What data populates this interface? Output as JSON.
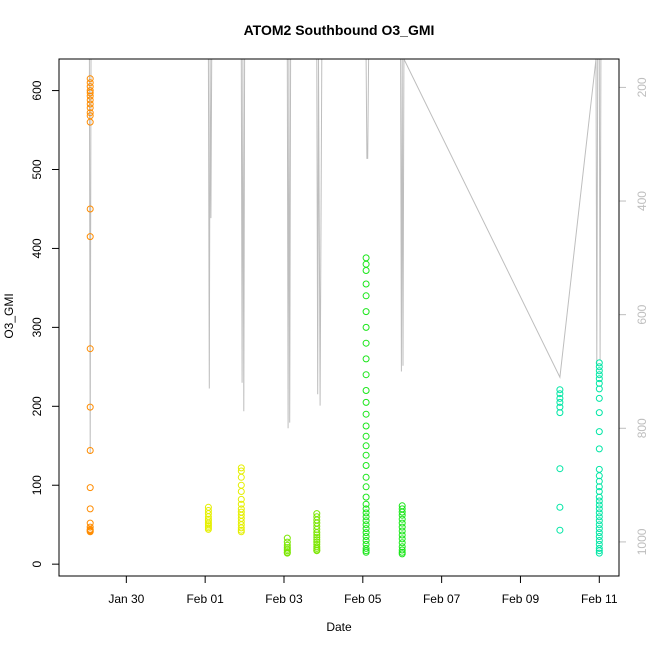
{
  "chart_data": {
    "type": "scatter",
    "title": "ATOM2 Southbound O3_GMI",
    "xlabel": "Date",
    "ylabel": "O3_GMI",
    "xlim": [
      "2017-01-28T07:00",
      "2017-02-11T12:00"
    ],
    "ylim": [
      -15,
      640
    ],
    "x_ticks": [
      {
        "date": "2017-01-30",
        "label": "Jan 30"
      },
      {
        "date": "2017-02-01",
        "label": "Feb 01"
      },
      {
        "date": "2017-02-03",
        "label": "Feb 03"
      },
      {
        "date": "2017-02-05",
        "label": "Feb 05"
      },
      {
        "date": "2017-02-07",
        "label": "Feb 07"
      },
      {
        "date": "2017-02-09",
        "label": "Feb 09"
      },
      {
        "date": "2017-02-11",
        "label": "Feb 11"
      }
    ],
    "y_ticks": [
      0,
      100,
      200,
      300,
      400,
      500,
      600
    ],
    "y2_axis": {
      "quantity": "pressure",
      "lim": [
        150,
        1060
      ],
      "reversed": true,
      "ticks": [
        200,
        400,
        600,
        800,
        1000
      ],
      "color": "#bebebe"
    },
    "grid": false,
    "legend": "none",
    "point_style": "open-circle",
    "series": [
      {
        "color": "#ff8c00",
        "points": [
          [
            "2017-01-29T02:00",
            615
          ],
          [
            "2017-01-29T02:00",
            610
          ],
          [
            "2017-01-29T02:00",
            605
          ],
          [
            "2017-01-29T02:00",
            600
          ],
          [
            "2017-01-29T02:00",
            597
          ],
          [
            "2017-01-29T02:00",
            593
          ],
          [
            "2017-01-29T02:00",
            588
          ],
          [
            "2017-01-29T02:00",
            583
          ],
          [
            "2017-01-29T02:00",
            578
          ],
          [
            "2017-01-29T02:00",
            572
          ],
          [
            "2017-01-29T02:00",
            568
          ],
          [
            "2017-01-29T02:00",
            560
          ],
          [
            "2017-01-29T02:00",
            450
          ],
          [
            "2017-01-29T02:00",
            415
          ],
          [
            "2017-01-29T02:00",
            273
          ],
          [
            "2017-01-29T02:00",
            199
          ],
          [
            "2017-01-29T02:00",
            144
          ],
          [
            "2017-01-29T02:00",
            97
          ],
          [
            "2017-01-29T02:00",
            70
          ],
          [
            "2017-01-29T02:00",
            52
          ],
          [
            "2017-01-29T02:00",
            47
          ],
          [
            "2017-01-29T02:00",
            44
          ],
          [
            "2017-01-29T02:00",
            43
          ],
          [
            "2017-01-29T02:00",
            42
          ],
          [
            "2017-01-29T02:00",
            41
          ]
        ]
      },
      {
        "color": "#e5ef00",
        "points": [
          [
            "2017-02-01T02:00",
            72
          ],
          [
            "2017-02-01T02:00",
            68
          ],
          [
            "2017-02-01T02:00",
            64
          ],
          [
            "2017-02-01T02:00",
            60
          ],
          [
            "2017-02-01T02:00",
            57
          ],
          [
            "2017-02-01T02:00",
            55
          ],
          [
            "2017-02-01T02:00",
            52
          ],
          [
            "2017-02-01T02:00",
            50
          ],
          [
            "2017-02-01T02:00",
            48
          ],
          [
            "2017-02-01T02:00",
            46
          ],
          [
            "2017-02-01T02:00",
            44
          ],
          [
            "2017-02-01T22:00",
            122
          ],
          [
            "2017-02-01T22:00",
            118
          ],
          [
            "2017-02-01T22:00",
            110
          ],
          [
            "2017-02-01T22:00",
            100
          ],
          [
            "2017-02-01T22:00",
            92
          ],
          [
            "2017-02-01T22:00",
            82
          ],
          [
            "2017-02-01T22:00",
            76
          ],
          [
            "2017-02-01T22:00",
            70
          ],
          [
            "2017-02-01T22:00",
            66
          ],
          [
            "2017-02-01T22:00",
            62
          ],
          [
            "2017-02-01T22:00",
            58
          ],
          [
            "2017-02-01T22:00",
            54
          ],
          [
            "2017-02-01T22:00",
            50
          ],
          [
            "2017-02-01T22:00",
            46
          ],
          [
            "2017-02-01T22:00",
            43
          ],
          [
            "2017-02-01T22:00",
            41
          ]
        ]
      },
      {
        "color": "#7be600",
        "points": [
          [
            "2017-02-03T02:00",
            33
          ],
          [
            "2017-02-03T02:00",
            28
          ],
          [
            "2017-02-03T02:00",
            24
          ],
          [
            "2017-02-03T02:00",
            21
          ],
          [
            "2017-02-03T02:00",
            19
          ],
          [
            "2017-02-03T02:00",
            17
          ],
          [
            "2017-02-03T02:00",
            15
          ],
          [
            "2017-02-03T02:00",
            14
          ],
          [
            "2017-02-03T20:00",
            64
          ],
          [
            "2017-02-03T20:00",
            60
          ],
          [
            "2017-02-03T20:00",
            56
          ],
          [
            "2017-02-03T20:00",
            52
          ],
          [
            "2017-02-03T20:00",
            48
          ],
          [
            "2017-02-03T20:00",
            44
          ],
          [
            "2017-02-03T20:00",
            40
          ],
          [
            "2017-02-03T20:00",
            37
          ],
          [
            "2017-02-03T20:00",
            34
          ],
          [
            "2017-02-03T20:00",
            31
          ],
          [
            "2017-02-03T20:00",
            28
          ],
          [
            "2017-02-03T20:00",
            25
          ],
          [
            "2017-02-03T20:00",
            22
          ],
          [
            "2017-02-03T20:00",
            20
          ],
          [
            "2017-02-03T20:00",
            18
          ],
          [
            "2017-02-03T20:00",
            17
          ]
        ]
      },
      {
        "color": "#19e619",
        "points": [
          [
            "2017-02-05T02:00",
            388
          ],
          [
            "2017-02-05T02:00",
            380
          ],
          [
            "2017-02-05T02:00",
            372
          ],
          [
            "2017-02-05T02:00",
            355
          ],
          [
            "2017-02-05T02:00",
            340
          ],
          [
            "2017-02-05T02:00",
            320
          ],
          [
            "2017-02-05T02:00",
            300
          ],
          [
            "2017-02-05T02:00",
            280
          ],
          [
            "2017-02-05T02:00",
            260
          ],
          [
            "2017-02-05T02:00",
            240
          ],
          [
            "2017-02-05T02:00",
            220
          ],
          [
            "2017-02-05T02:00",
            205
          ],
          [
            "2017-02-05T02:00",
            190
          ],
          [
            "2017-02-05T02:00",
            175
          ],
          [
            "2017-02-05T02:00",
            162
          ],
          [
            "2017-02-05T02:00",
            150
          ],
          [
            "2017-02-05T02:00",
            138
          ],
          [
            "2017-02-05T02:00",
            125
          ],
          [
            "2017-02-05T02:00",
            110
          ],
          [
            "2017-02-05T02:00",
            98
          ],
          [
            "2017-02-05T02:00",
            85
          ],
          [
            "2017-02-05T02:00",
            76
          ],
          [
            "2017-02-05T02:00",
            70
          ],
          [
            "2017-02-05T02:00",
            65
          ],
          [
            "2017-02-05T02:00",
            60
          ],
          [
            "2017-02-05T02:00",
            55
          ],
          [
            "2017-02-05T02:00",
            50
          ],
          [
            "2017-02-05T02:00",
            45
          ],
          [
            "2017-02-05T02:00",
            40
          ],
          [
            "2017-02-05T02:00",
            35
          ],
          [
            "2017-02-05T02:00",
            30
          ],
          [
            "2017-02-05T02:00",
            25
          ],
          [
            "2017-02-05T02:00",
            20
          ],
          [
            "2017-02-05T02:00",
            17
          ],
          [
            "2017-02-05T02:00",
            15
          ],
          [
            "2017-02-06T00:00",
            74
          ],
          [
            "2017-02-06T00:00",
            70
          ],
          [
            "2017-02-06T00:00",
            66
          ],
          [
            "2017-02-06T00:00",
            62
          ],
          [
            "2017-02-06T00:00",
            57
          ],
          [
            "2017-02-06T00:00",
            52
          ],
          [
            "2017-02-06T00:00",
            47
          ],
          [
            "2017-02-06T00:00",
            42
          ],
          [
            "2017-02-06T00:00",
            37
          ],
          [
            "2017-02-06T00:00",
            32
          ],
          [
            "2017-02-06T00:00",
            27
          ],
          [
            "2017-02-06T00:00",
            22
          ],
          [
            "2017-02-06T00:00",
            18
          ],
          [
            "2017-02-06T00:00",
            15
          ],
          [
            "2017-02-06T00:00",
            13
          ]
        ]
      },
      {
        "color": "#00e6a5",
        "points": [
          [
            "2017-02-10T00:00",
            221
          ],
          [
            "2017-02-10T00:00",
            216
          ],
          [
            "2017-02-10T00:00",
            210
          ],
          [
            "2017-02-10T00:00",
            205
          ],
          [
            "2017-02-10T00:00",
            199
          ],
          [
            "2017-02-10T00:00",
            192
          ],
          [
            "2017-02-10T00:00",
            121
          ],
          [
            "2017-02-10T00:00",
            72
          ],
          [
            "2017-02-10T00:00",
            43
          ],
          [
            "2017-02-11T00:00",
            255
          ],
          [
            "2017-02-11T00:00",
            250
          ],
          [
            "2017-02-11T00:00",
            245
          ],
          [
            "2017-02-11T00:00",
            240
          ],
          [
            "2017-02-11T00:00",
            235
          ],
          [
            "2017-02-11T00:00",
            229
          ],
          [
            "2017-02-11T00:00",
            222
          ],
          [
            "2017-02-11T00:00",
            210
          ],
          [
            "2017-02-11T00:00",
            192
          ],
          [
            "2017-02-11T00:00",
            168
          ],
          [
            "2017-02-11T00:00",
            146
          ],
          [
            "2017-02-11T00:00",
            120
          ],
          [
            "2017-02-11T00:00",
            112
          ],
          [
            "2017-02-11T00:00",
            105
          ],
          [
            "2017-02-11T00:00",
            98
          ],
          [
            "2017-02-11T00:00",
            92
          ],
          [
            "2017-02-11T00:00",
            85
          ],
          [
            "2017-02-11T00:00",
            80
          ],
          [
            "2017-02-11T00:00",
            75
          ],
          [
            "2017-02-11T00:00",
            70
          ],
          [
            "2017-02-11T00:00",
            65
          ],
          [
            "2017-02-11T00:00",
            60
          ],
          [
            "2017-02-11T00:00",
            55
          ],
          [
            "2017-02-11T00:00",
            50
          ],
          [
            "2017-02-11T00:00",
            45
          ],
          [
            "2017-02-11T00:00",
            40
          ],
          [
            "2017-02-11T00:00",
            35
          ],
          [
            "2017-02-11T00:00",
            30
          ],
          [
            "2017-02-11T00:00",
            25
          ],
          [
            "2017-02-11T00:00",
            20
          ],
          [
            "2017-02-11T00:00",
            17
          ],
          [
            "2017-02-11T00:00",
            14
          ]
        ]
      }
    ],
    "pressure_trace": {
      "color": "#bebebe",
      "points": [
        [
          "2017-01-29T01:30",
          150
        ],
        [
          "2017-01-29T02:00",
          845
        ],
        [
          "2017-01-29T02:30",
          150
        ],
        [
          "2017-02-01T02:00",
          150
        ],
        [
          "2017-02-01T02:30",
          730
        ],
        [
          "2017-02-01T03:00",
          150
        ],
        [
          "2017-02-01T03:30",
          430
        ],
        [
          "2017-02-01T04:00",
          150
        ],
        [
          "2017-02-01T22:00",
          150
        ],
        [
          "2017-02-01T22:30",
          720
        ],
        [
          "2017-02-01T23:00",
          150
        ],
        [
          "2017-02-01T23:30",
          770
        ],
        [
          "2017-02-02T00:00",
          150
        ],
        [
          "2017-02-03T02:00",
          150
        ],
        [
          "2017-02-03T02:30",
          800
        ],
        [
          "2017-02-03T03:00",
          150
        ],
        [
          "2017-02-03T03:30",
          790
        ],
        [
          "2017-02-03T04:00",
          150
        ],
        [
          "2017-02-03T20:00",
          150
        ],
        [
          "2017-02-03T20:30",
          740
        ],
        [
          "2017-02-03T21:00",
          150
        ],
        [
          "2017-02-03T22:00",
          760
        ],
        [
          "2017-02-03T23:00",
          150
        ],
        [
          "2017-02-05T02:00",
          150
        ],
        [
          "2017-02-05T02:30",
          325
        ],
        [
          "2017-02-05T03:00",
          325
        ],
        [
          "2017-02-05T03:30",
          150
        ],
        [
          "2017-02-05T23:00",
          150
        ],
        [
          "2017-02-05T23:30",
          700
        ],
        [
          "2017-02-06T00:00",
          150
        ],
        [
          "2017-02-06T00:30",
          690
        ],
        [
          "2017-02-06T01:00",
          150
        ],
        [
          "2017-02-10T00:00",
          710
        ],
        [
          "2017-02-10T22:00",
          150
        ],
        [
          "2017-02-10T22:30",
          690
        ],
        [
          "2017-02-10T23:00",
          150
        ],
        [
          "2017-02-11T00:00",
          150
        ],
        [
          "2017-02-11T00:30",
          680
        ],
        [
          "2017-02-11T01:00",
          150
        ]
      ]
    }
  }
}
